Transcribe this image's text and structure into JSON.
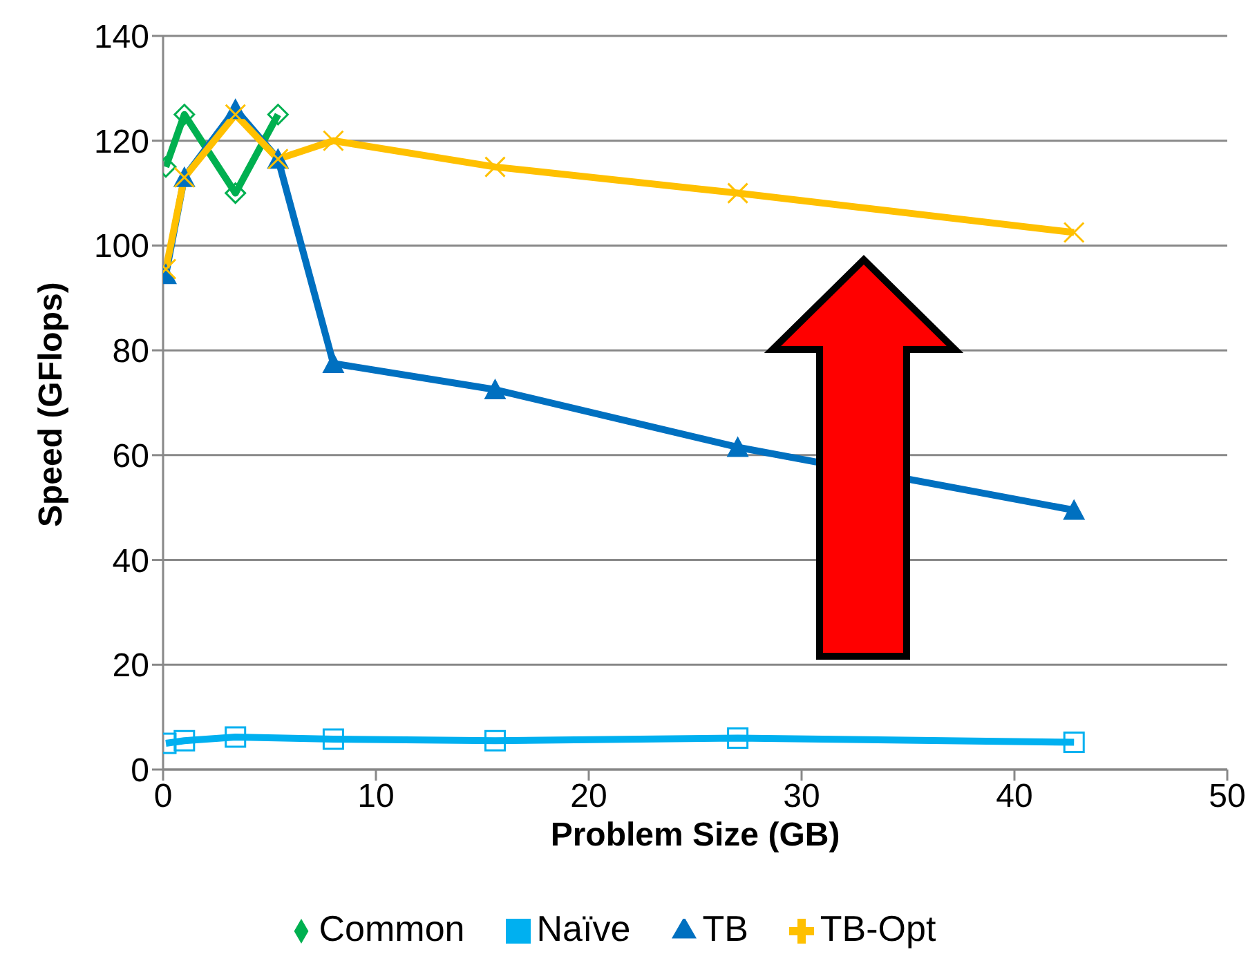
{
  "chart_data": {
    "type": "line",
    "xlabel": "Problem Size (GB)",
    "ylabel": "Speed (GFlops)",
    "xlim": [
      0,
      50
    ],
    "xticks": [
      0,
      10,
      20,
      30,
      40,
      50
    ],
    "ylim": [
      0,
      140
    ],
    "yticks": [
      0,
      20,
      40,
      60,
      80,
      100,
      120,
      140
    ],
    "grid": "y",
    "legend": "bottom",
    "series": [
      {
        "name": "Common",
        "color": "#00b050",
        "marker": "diamond",
        "x": [
          0.13,
          1,
          3.4,
          5.4
        ],
        "values": [
          115,
          125,
          110,
          125
        ]
      },
      {
        "name": "Naïve",
        "color": "#00b0f0",
        "marker": "square",
        "x": [
          0.13,
          1,
          3.4,
          8,
          15.6,
          27,
          42.8
        ],
        "values": [
          5,
          5.5,
          6.2,
          5.8,
          5.5,
          6,
          5.2
        ]
      },
      {
        "name": "TB",
        "color": "#0070c0",
        "marker": "triangle",
        "x": [
          0.13,
          1,
          3.4,
          5.4,
          8,
          15.6,
          27,
          42.8
        ],
        "values": [
          94.5,
          113,
          126,
          116.5,
          77.5,
          72.5,
          61.5,
          49.5
        ]
      },
      {
        "name": "TB-Opt",
        "color": "#ffc000",
        "marker": "cross",
        "x": [
          0.13,
          1,
          3.4,
          5.4,
          8,
          15.6,
          27,
          42.8
        ],
        "values": [
          95.5,
          113,
          125,
          116.5,
          120,
          115,
          110,
          102.5
        ]
      }
    ]
  }
}
